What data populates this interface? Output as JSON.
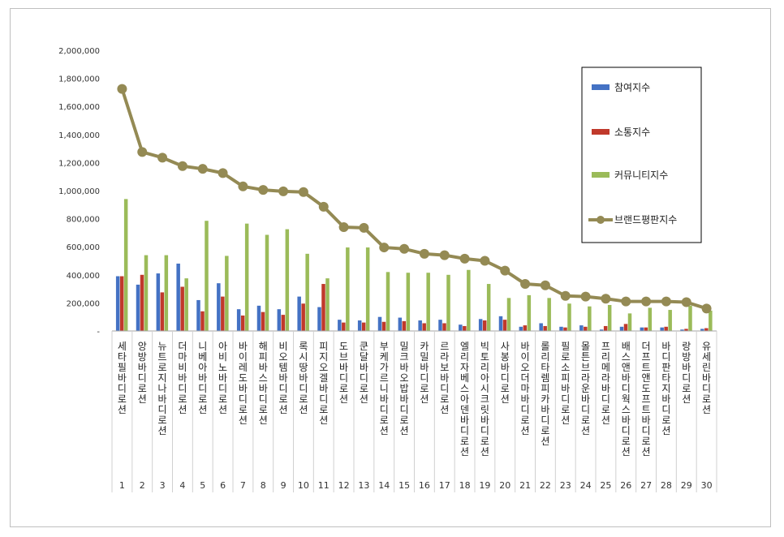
{
  "chart_data": {
    "type": "bar",
    "title": "",
    "xlabel": "",
    "ylabel": "",
    "ylim": [
      0,
      2000000
    ],
    "yticks": [
      0,
      200000,
      400000,
      600000,
      800000,
      1000000,
      1200000,
      1400000,
      1600000,
      1800000,
      2000000
    ],
    "ytick_labels": [
      "-",
      "200,000",
      "400,000",
      "600,000",
      "800,000",
      "1,000,000",
      "1,200,000",
      "1,400,000",
      "1,600,000",
      "1,800,000",
      "2,000,000"
    ],
    "categories": [
      "세타필바디로션",
      "앙방바디로션",
      "뉴트로지나바디로션",
      "더마비바디로션",
      "니베아바디로션",
      "아비노바디로션",
      "바이레도바디로션",
      "해피바스바디로션",
      "비오템바디로션",
      "록시땅바디로션",
      "피지오겔바디로션",
      "도브바디로션",
      "쿤달바디로션",
      "부케가르니바디로션",
      "밀크바오밥바디로션",
      "카밀바디로션",
      "르라보바디로션",
      "엘리자베스아덴바디로션",
      "빅토리아시크릿바디로션",
      "사봉바디로션",
      "바이오더마바디로션",
      "롤리타렘피카바디로션",
      "필로소피바디로션",
      "몰튼브라운바디로션",
      "프리메라바디로션",
      "배스앤바디웍스바디로션",
      "더프트앤도프트바디로션",
      "바디판타지바디로션",
      "랑방바디로션",
      "유세린바디로션"
    ],
    "ranks": [
      "1",
      "2",
      "3",
      "4",
      "5",
      "6",
      "7",
      "8",
      "9",
      "10",
      "11",
      "12",
      "13",
      "14",
      "15",
      "16",
      "17",
      "18",
      "19",
      "20",
      "21",
      "22",
      "23",
      "24",
      "25",
      "26",
      "27",
      "28",
      "29",
      "30"
    ],
    "series": [
      {
        "name": "참여지수",
        "kind": "bar",
        "color": "#4472c4",
        "values": [
          390000,
          330000,
          410000,
          480000,
          220000,
          340000,
          155000,
          180000,
          155000,
          245000,
          170000,
          80000,
          75000,
          100000,
          95000,
          75000,
          80000,
          45000,
          85000,
          105000,
          30000,
          55000,
          30000,
          40000,
          10000,
          30000,
          25000,
          25000,
          10000,
          15000
        ]
      },
      {
        "name": "소통지수",
        "kind": "bar",
        "color": "#c0392b",
        "values": [
          390000,
          400000,
          275000,
          315000,
          140000,
          245000,
          110000,
          135000,
          115000,
          195000,
          335000,
          60000,
          60000,
          65000,
          70000,
          55000,
          55000,
          35000,
          75000,
          80000,
          40000,
          35000,
          25000,
          30000,
          35000,
          50000,
          25000,
          30000,
          15000,
          20000
        ]
      },
      {
        "name": "커뮤니티지수",
        "kind": "bar",
        "color": "#9bbb59",
        "values": [
          940000,
          540000,
          540000,
          375000,
          785000,
          535000,
          765000,
          685000,
          725000,
          550000,
          375000,
          595000,
          595000,
          420000,
          415000,
          415000,
          400000,
          435000,
          335000,
          235000,
          255000,
          235000,
          195000,
          175000,
          185000,
          125000,
          165000,
          150000,
          180000,
          145000
        ]
      },
      {
        "name": "브랜드평판지수",
        "kind": "line",
        "color": "#948a54",
        "values": [
          1725000,
          1275000,
          1235000,
          1175000,
          1155000,
          1125000,
          1030000,
          1005000,
          995000,
          990000,
          885000,
          740000,
          735000,
          595000,
          585000,
          550000,
          540000,
          515000,
          500000,
          430000,
          335000,
          325000,
          250000,
          245000,
          230000,
          210000,
          210000,
          210000,
          205000,
          160000
        ]
      }
    ],
    "legend_position": "top-right",
    "grid": false
  }
}
